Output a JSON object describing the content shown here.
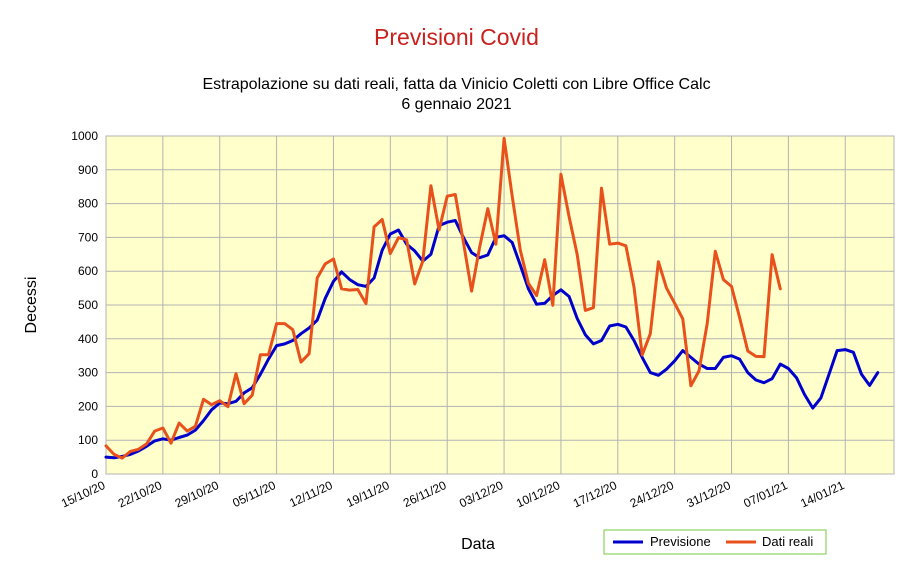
{
  "chart_data": {
    "type": "line",
    "title": "Previsioni Covid",
    "subtitle_lines": [
      "Estrapolazione su dati reali, fatta da Vinicio Coletti con Libre Office Calc",
      "6 gennaio 2021"
    ],
    "xlabel": "Data",
    "ylabel": "Decessi",
    "ylim": [
      0,
      1000
    ],
    "yticks": [
      0,
      100,
      200,
      300,
      400,
      500,
      600,
      700,
      800,
      900,
      1000
    ],
    "x_range": [
      "15/10/20",
      "20/01/21"
    ],
    "x_ticks": [
      "15/10/20",
      "22/10/20",
      "29/10/20",
      "05/11/20",
      "12/11/20",
      "19/11/20",
      "26/11/20",
      "03/12/20",
      "10/12/20",
      "17/12/20",
      "24/12/20",
      "31/12/20",
      "07/01/21",
      "14/01/21"
    ],
    "grid": true,
    "legend_position": "bottom-right",
    "series": [
      {
        "name": "Previsione",
        "color": "#0000cc",
        "start": "15/10/20",
        "values": [
          50,
          48,
          52,
          58,
          68,
          82,
          98,
          104,
          100,
          108,
          115,
          130,
          158,
          190,
          210,
          208,
          215,
          240,
          255,
          295,
          340,
          380,
          385,
          395,
          415,
          432,
          455,
          520,
          570,
          598,
          575,
          560,
          555,
          580,
          662,
          710,
          722,
          680,
          660,
          630,
          650,
          735,
          745,
          750,
          700,
          655,
          640,
          648,
          700,
          705,
          685,
          618,
          548,
          502,
          505,
          528,
          545,
          525,
          460,
          412,
          385,
          395,
          438,
          443,
          435,
          395,
          345,
          300,
          292,
          310,
          335,
          365,
          345,
          325,
          312,
          312,
          345,
          350,
          340,
          300,
          278,
          270,
          282,
          325,
          312,
          285,
          235,
          195,
          225,
          295,
          365,
          368,
          360,
          295,
          262,
          300
        ]
      },
      {
        "name": "Dati reali",
        "color": "#e8511b",
        "start": "15/10/20",
        "values": [
          83,
          58,
          47,
          67,
          73,
          89,
          127,
          136,
          91,
          151,
          127,
          141,
          221,
          205,
          217,
          199,
          297,
          208,
          233,
          353,
          353,
          445,
          445,
          427,
          331,
          356,
          580,
          622,
          636,
          548,
          544,
          546,
          504,
          731,
          753,
          652,
          699,
          693,
          562,
          630,
          853,
          722,
          822,
          827,
          686,
          541,
          672,
          785,
          680,
          993,
          822,
          662,
          564,
          528,
          634,
          499,
          887,
          761,
          649,
          484,
          492,
          846,
          680,
          683,
          675,
          553,
          352,
          415,
          628,
          550,
          505,
          459,
          261,
          305,
          445,
          659,
          575,
          555,
          463,
          364,
          348,
          347,
          649,
          548
        ]
      }
    ]
  }
}
